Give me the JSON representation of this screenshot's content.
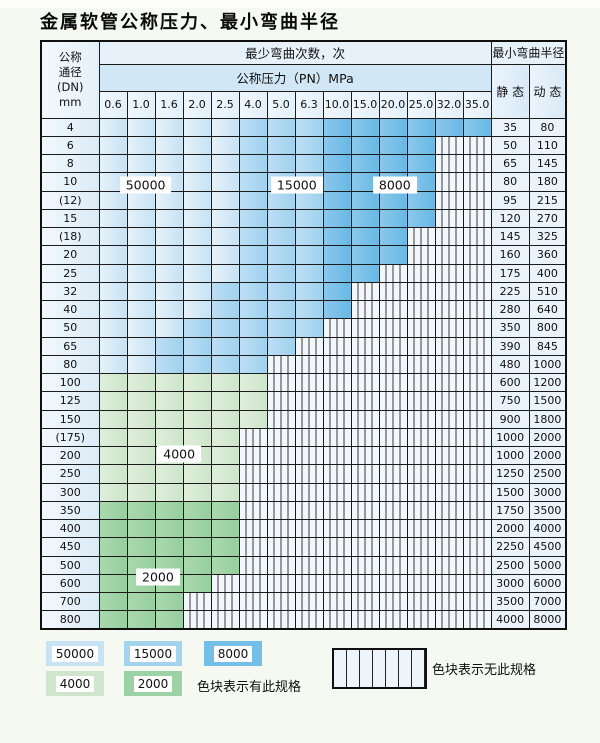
{
  "title": "金属软管公称压力、最小弯曲半径",
  "table": {
    "corner_lines": [
      "公称",
      "通径",
      "(DN)",
      "mm"
    ],
    "cycles_header": "最少弯曲次数，次",
    "pressure_header": "公称压力（PN）MPa",
    "radius_header": "最小弯曲半径",
    "static_header": "静 态",
    "dynamic_header": "动 态",
    "pressure_columns": [
      "0.6",
      "1.0",
      "1.6",
      "2.0",
      "2.5",
      "4.0",
      "5.0",
      "6.3",
      "10.0",
      "15.0",
      "20.0",
      "25.0",
      "32.0",
      "35.0"
    ],
    "cell_legend": {
      "1": "50000",
      "2": "15000",
      "3": "8000",
      "4": "4000",
      "5": "2000",
      "x": "no-spec-hatch"
    },
    "rows": [
      {
        "dn": "4",
        "cells": "11111222333333",
        "static": "35",
        "dynamic": "80"
      },
      {
        "dn": "6",
        "cells": "111112223333xx",
        "static": "50",
        "dynamic": "110"
      },
      {
        "dn": "8",
        "cells": "111112223333xx",
        "static": "65",
        "dynamic": "145"
      },
      {
        "dn": "10",
        "cells": "111112223333xx",
        "static": "80",
        "dynamic": "180"
      },
      {
        "dn": "(12)",
        "cells": "111112223333xx",
        "static": "95",
        "dynamic": "215"
      },
      {
        "dn": "15",
        "cells": "111112223333xx",
        "static": "120",
        "dynamic": "270"
      },
      {
        "dn": "(18)",
        "cells": "11111222333xxx",
        "static": "145",
        "dynamic": "325"
      },
      {
        "dn": "20",
        "cells": "11111222333xxx",
        "static": "160",
        "dynamic": "360"
      },
      {
        "dn": "25",
        "cells": "1111122233xxxx",
        "static": "175",
        "dynamic": "400"
      },
      {
        "dn": "32",
        "cells": "111122223xxxxx",
        "static": "225",
        "dynamic": "510"
      },
      {
        "dn": "40",
        "cells": "111122223xxxxx",
        "static": "280",
        "dynamic": "640"
      },
      {
        "dn": "50",
        "cells": "11122222xxxxxx",
        "static": "350",
        "dynamic": "800"
      },
      {
        "dn": "65",
        "cells": "1122222xxxxxxx",
        "static": "390",
        "dynamic": "845"
      },
      {
        "dn": "80",
        "cells": "112222xxxxxxxx",
        "static": "480",
        "dynamic": "1000"
      },
      {
        "dn": "100",
        "cells": "444444xxxxxxxx",
        "static": "600",
        "dynamic": "1200"
      },
      {
        "dn": "125",
        "cells": "444444xxxxxxxx",
        "static": "750",
        "dynamic": "1500"
      },
      {
        "dn": "150",
        "cells": "444444xxxxxxxx",
        "static": "900",
        "dynamic": "1800"
      },
      {
        "dn": "(175)",
        "cells": "44444xxxxxxxxx",
        "static": "1000",
        "dynamic": "2000"
      },
      {
        "dn": "200",
        "cells": "44444xxxxxxxxx",
        "static": "1000",
        "dynamic": "2000"
      },
      {
        "dn": "250",
        "cells": "44444xxxxxxxxx",
        "static": "1250",
        "dynamic": "2500"
      },
      {
        "dn": "300",
        "cells": "44444xxxxxxxxx",
        "static": "1500",
        "dynamic": "3000"
      },
      {
        "dn": "350",
        "cells": "55555xxxxxxxxx",
        "static": "1750",
        "dynamic": "3500"
      },
      {
        "dn": "400",
        "cells": "55555xxxxxxxxx",
        "static": "2000",
        "dynamic": "4000"
      },
      {
        "dn": "450",
        "cells": "55555xxxxxxxxx",
        "static": "2250",
        "dynamic": "4500"
      },
      {
        "dn": "500",
        "cells": "55555xxxxxxxxx",
        "static": "2500",
        "dynamic": "5000"
      },
      {
        "dn": "600",
        "cells": "5555xxxxxxxxxx",
        "static": "3000",
        "dynamic": "6000"
      },
      {
        "dn": "700",
        "cells": "555xxxxxxxxxxx",
        "static": "3500",
        "dynamic": "7000"
      },
      {
        "dn": "800",
        "cells": "555xxxxxxxxxxx",
        "static": "4000",
        "dynamic": "8000"
      }
    ]
  },
  "zone_labels": [
    {
      "text": "50000",
      "col": 1.7,
      "row": 3.57
    },
    {
      "text": "15000",
      "col": 7.1,
      "row": 3.57
    },
    {
      "text": "8000",
      "col": 10.6,
      "row": 3.57
    },
    {
      "text": "4000",
      "col": 2.9,
      "row": 18.34
    },
    {
      "text": "2000",
      "col": 2.14,
      "row": 25.1
    }
  ],
  "legend": {
    "spec_swatches": [
      {
        "label": "50000",
        "color": "#c9e3f5"
      },
      {
        "label": "15000",
        "color": "#a4d3ee"
      },
      {
        "label": "8000",
        "color": "#74bfe7"
      },
      {
        "label": "4000",
        "color": "#d0e6cc"
      },
      {
        "label": "2000",
        "color": "#9cd2a4"
      },
      {
        "label": "4000-row2",
        "color": ""
      }
    ],
    "has_spec_text": "色块表示有此规格",
    "no_spec_text": "色块表示无此规格"
  },
  "colors": {
    "cycles_50000": "#c9e3f5",
    "cycles_15000": "#a4d3ee",
    "cycles_8000": "#74bfe7",
    "cycles_4000": "#d0e6cc",
    "cycles_2000": "#9cd2a4",
    "no_spec_bg": "#f1f7fb",
    "grid_line": "#1b1b1b",
    "page_bg": "#f6f9f1"
  }
}
